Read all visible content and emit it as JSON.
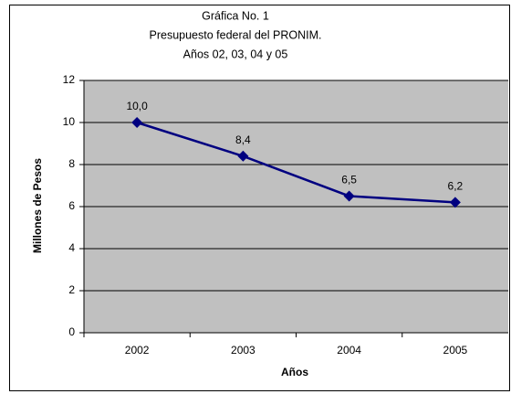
{
  "chart_data": {
    "type": "line",
    "title": [
      "Gráfica No. 1",
      "Presupuesto federal del PRONIM.",
      "Años 02, 03, 04 y 05"
    ],
    "x_label": "Años",
    "y_label": "Millones de Pesos",
    "categories": [
      "2002",
      "2003",
      "2004",
      "2005"
    ],
    "values": [
      10.0,
      8.4,
      6.5,
      6.2
    ],
    "value_labels": [
      "10,0",
      "8,4",
      "6,5",
      "6,2"
    ],
    "color": "#000080",
    "plot_background": "#c0c0c0",
    "ylim": [
      0,
      12
    ],
    "yticks": [
      0,
      2,
      4,
      6,
      8,
      10,
      12
    ],
    "grid": true
  }
}
